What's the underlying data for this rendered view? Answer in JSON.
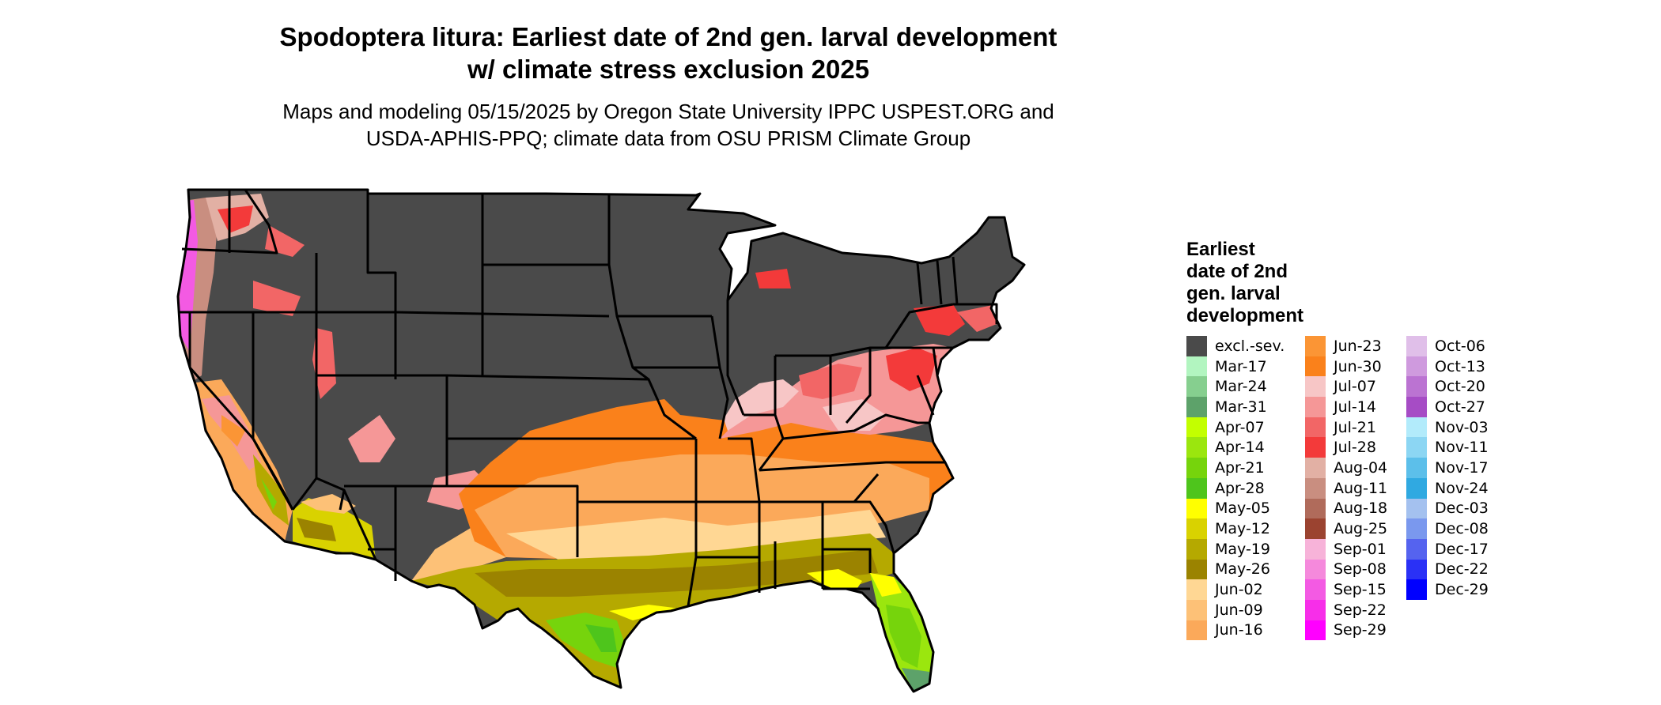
{
  "title_line1": "Spodoptera litura: Earliest date of 2nd gen. larval development",
  "title_line2": "w/ climate stress exclusion 2025",
  "subtitle_line1": "Maps and modeling 05/15/2025 by Oregon State University IPPC USPEST.ORG and",
  "subtitle_line2": "USDA-APHIS-PPQ; climate data from OSU PRISM Climate Group",
  "legend": {
    "title_lines": [
      "Earliest",
      "date of 2nd",
      "gen. larval",
      "development"
    ],
    "columns": [
      [
        {
          "label": "excl.-sev.",
          "color": "#4a4a4a"
        },
        {
          "label": "Mar-17",
          "color": "#b2f5c0"
        },
        {
          "label": "Mar-24",
          "color": "#86cf8f"
        },
        {
          "label": "Mar-31",
          "color": "#5da26a"
        },
        {
          "label": "Apr-07",
          "color": "#c3ff00"
        },
        {
          "label": "Apr-14",
          "color": "#9be60e"
        },
        {
          "label": "Apr-21",
          "color": "#76d40c"
        },
        {
          "label": "Apr-28",
          "color": "#4ec51c"
        },
        {
          "label": "May-05",
          "color": "#ffff00"
        },
        {
          "label": "May-12",
          "color": "#d9d200"
        },
        {
          "label": "May-19",
          "color": "#b5a900"
        },
        {
          "label": "May-26",
          "color": "#9b8300"
        },
        {
          "label": "Jun-02",
          "color": "#ffd794"
        },
        {
          "label": "Jun-09",
          "color": "#fdc177"
        },
        {
          "label": "Jun-16",
          "color": "#fba95a"
        }
      ],
      [
        {
          "label": "Jun-23",
          "color": "#fb9535"
        },
        {
          "label": "Jun-30",
          "color": "#fa811b"
        },
        {
          "label": "Jul-07",
          "color": "#f7c6c6"
        },
        {
          "label": "Jul-14",
          "color": "#f59797"
        },
        {
          "label": "Jul-21",
          "color": "#f26666"
        },
        {
          "label": "Jul-28",
          "color": "#f33a3a"
        },
        {
          "label": "Aug-04",
          "color": "#e2b0a4"
        },
        {
          "label": "Aug-11",
          "color": "#c98e80"
        },
        {
          "label": "Aug-18",
          "color": "#b06b5b"
        },
        {
          "label": "Aug-25",
          "color": "#9b4330"
        },
        {
          "label": "Sep-01",
          "color": "#f7b3d9"
        },
        {
          "label": "Sep-08",
          "color": "#f589dc"
        },
        {
          "label": "Sep-15",
          "color": "#f35ae3"
        },
        {
          "label": "Sep-22",
          "color": "#f72ee9"
        },
        {
          "label": "Sep-29",
          "color": "#ff00ff"
        }
      ],
      [
        {
          "label": "Oct-06",
          "color": "#e0bfe9"
        },
        {
          "label": "Oct-13",
          "color": "#cf9ade"
        },
        {
          "label": "Oct-20",
          "color": "#bb73d2"
        },
        {
          "label": "Oct-27",
          "color": "#a64cc5"
        },
        {
          "label": "Nov-03",
          "color": "#b2ebfb"
        },
        {
          "label": "Nov-11",
          "color": "#8cd6f3"
        },
        {
          "label": "Nov-17",
          "color": "#5cbfea"
        },
        {
          "label": "Nov-24",
          "color": "#30a9e1"
        },
        {
          "label": "Dec-03",
          "color": "#a4c1ef"
        },
        {
          "label": "Dec-08",
          "color": "#7a98ee"
        },
        {
          "label": "Dec-17",
          "color": "#5563ef"
        },
        {
          "label": "Dec-22",
          "color": "#2a31f6"
        },
        {
          "label": "Dec-29",
          "color": "#0000ff"
        }
      ]
    ]
  }
}
